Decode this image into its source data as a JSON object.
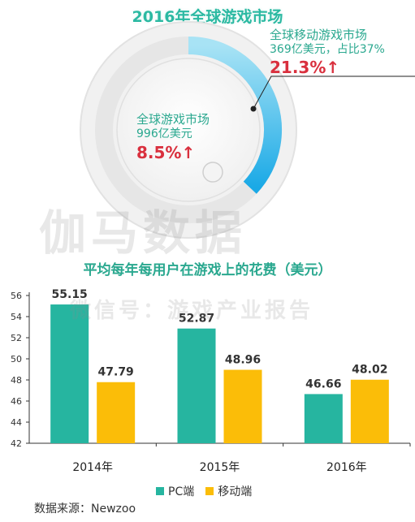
{
  "page": {
    "title": "2016年全球游戏市场",
    "watermark_main": "伽马数据",
    "watermark_sub": "微信号：游戏产业报告",
    "source": "数据来源：Newzoo"
  },
  "donut": {
    "mobile": {
      "label": "全球移动游戏市场",
      "value_text": "369亿美元，占比37%",
      "growth": "21.3%↑",
      "share": 0.37
    },
    "total": {
      "label": "全球游戏市场",
      "value_text": "996亿美元",
      "growth": "8.5%↑"
    },
    "colors": {
      "ring": "#ececec",
      "arc_start": "#a8e3f5",
      "arc_end": "#1aa9e6"
    }
  },
  "chart_data": {
    "type": "bar",
    "title": "平均每年每用户在游戏上的花费（美元）",
    "categories": [
      "2014年",
      "2015年",
      "2016年"
    ],
    "series": [
      {
        "name": "PC端",
        "values": [
          55.15,
          52.87,
          46.66
        ],
        "color": "#26b5a0"
      },
      {
        "name": "移动端",
        "values": [
          47.79,
          48.96,
          48.02
        ],
        "color": "#fbbd08"
      }
    ],
    "value_labels": [
      [
        "55.15",
        "52.87",
        "46.66"
      ],
      [
        "47.79",
        "48.96",
        "48.02"
      ]
    ],
    "ylim": [
      42,
      56
    ],
    "yticks": [
      "42",
      "44",
      "46",
      "48",
      "50",
      "52",
      "54",
      "56"
    ],
    "grid": false,
    "legend": "bottom"
  }
}
